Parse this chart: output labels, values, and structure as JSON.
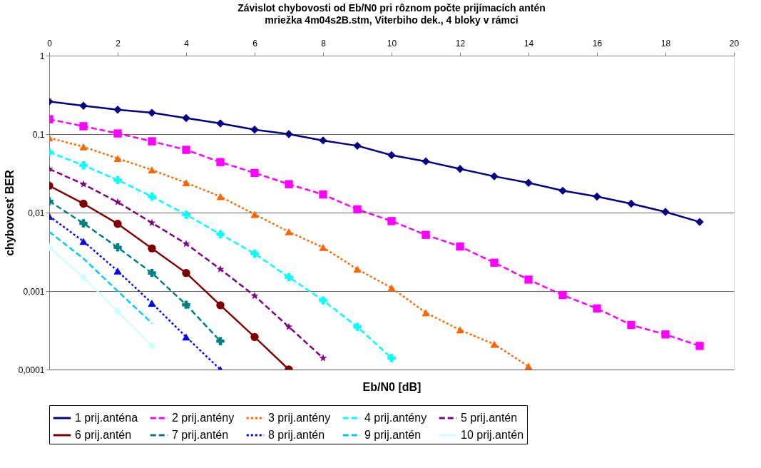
{
  "chart_data": {
    "type": "line",
    "title": "Závislot chybovosti od Eb/N0 pri rôznom počte prijímacích antén",
    "subtitle": "mriežka 4m04s2B.stm, Viterbiho dek., 4 bloky v rámci",
    "xlabel": "Eb/N0 [dB]",
    "ylabel": "chybovosť BER",
    "x": [
      0,
      1,
      2,
      3,
      4,
      5,
      6,
      7,
      8,
      9,
      10,
      11,
      12,
      13,
      14,
      15,
      16,
      17,
      18,
      19
    ],
    "xlim": [
      0,
      20
    ],
    "xticks": [
      0,
      2,
      4,
      6,
      8,
      10,
      12,
      14,
      16,
      18,
      20
    ],
    "ylim": [
      0.0001,
      1
    ],
    "log": "y",
    "yticks": [
      {
        "value": 0.0001,
        "label": "0,0001"
      },
      {
        "value": 0.001,
        "label": "0,001"
      },
      {
        "value": 0.01,
        "label": "0,01"
      },
      {
        "value": 0.1,
        "label": "0,1"
      },
      1
    ],
    "grid": "y",
    "legend": "bottom",
    "series": [
      {
        "name": "1 prij.anténa",
        "color": "#000080",
        "marker": "diamond",
        "line_style": "solid",
        "values": [
          0.26,
          0.23,
          0.205,
          0.187,
          0.16,
          0.137,
          0.114,
          0.1,
          0.083,
          0.071,
          0.054,
          0.045,
          0.036,
          0.029,
          0.024,
          0.019,
          0.016,
          0.013,
          0.0102,
          0.0076
        ]
      },
      {
        "name": "2 prij.antény",
        "color": "#ff00ff",
        "marker": "square",
        "line_style": "dashed",
        "values": [
          0.155,
          0.126,
          0.102,
          0.081,
          0.063,
          0.044,
          0.032,
          0.023,
          0.017,
          0.011,
          0.0078,
          0.0052,
          0.0037,
          0.0023,
          0.0014,
          0.00089,
          0.0006,
          0.00037,
          0.00028,
          0.0002
        ]
      },
      {
        "name": "3 prij.antény",
        "color": "#ff6600",
        "marker": "triangle",
        "line_style": "dotted",
        "values": [
          0.09,
          0.069,
          0.049,
          0.035,
          0.024,
          0.016,
          0.0095,
          0.0057,
          0.0036,
          0.0019,
          0.0011,
          0.00053,
          0.00032,
          0.00021,
          0.00011,
          null,
          null,
          null,
          null,
          null
        ]
      },
      {
        "name": "4 prij.antény",
        "color": "#00ffff",
        "marker": "cross",
        "line_style": "dashed",
        "values": [
          0.059,
          0.04,
          0.026,
          0.016,
          0.0094,
          0.0053,
          0.003,
          0.0015,
          0.00076,
          0.00035,
          0.00014,
          null,
          null,
          null,
          null,
          null,
          null,
          null,
          null,
          null
        ]
      },
      {
        "name": "5 prij.antén",
        "color": "#800080",
        "marker": "star",
        "line_style": "dashed",
        "values": [
          0.036,
          0.023,
          0.0136,
          0.0074,
          0.004,
          0.0019,
          0.00087,
          0.00035,
          0.00014,
          null,
          null,
          null,
          null,
          null,
          null,
          null,
          null,
          null,
          null,
          null
        ]
      },
      {
        "name": "6 prij.antén",
        "color": "#800000",
        "marker": "circle",
        "line_style": "solid",
        "values": [
          0.022,
          0.013,
          0.0072,
          0.0035,
          0.0017,
          0.00066,
          0.00026,
          0.0001,
          null,
          null,
          null,
          null,
          null,
          null,
          null,
          null,
          null,
          null,
          null,
          null
        ]
      },
      {
        "name": "7 prij.antén",
        "color": "#008080",
        "marker": "cross",
        "line_style": "dashed",
        "values": [
          0.014,
          0.0073,
          0.0036,
          0.0017,
          0.00067,
          0.00023,
          null,
          null,
          null,
          null,
          null,
          null,
          null,
          null,
          null,
          null,
          null,
          null,
          null,
          null
        ]
      },
      {
        "name": "8 prij.antén",
        "color": "#0000ff",
        "marker": "triangle",
        "line_style": "dotted",
        "values": [
          0.009,
          0.0043,
          0.0018,
          0.0007,
          0.00026,
          0.0001,
          null,
          null,
          null,
          null,
          null,
          null,
          null,
          null,
          null,
          null,
          null,
          null,
          null,
          null
        ]
      },
      {
        "name": "9 prij.antén",
        "color": "#00ccff",
        "marker": "none",
        "line_style": "dashed",
        "values": [
          0.0057,
          0.0026,
          0.001,
          0.00039,
          null,
          null,
          null,
          null,
          null,
          null,
          null,
          null,
          null,
          null,
          null,
          null,
          null,
          null,
          null,
          null
        ]
      },
      {
        "name": "10 prij.antén",
        "color": "#ccffff",
        "marker": "diamond",
        "line_style": "solid",
        "values": [
          0.0036,
          0.0015,
          0.00055,
          0.0002,
          null,
          null,
          null,
          null,
          null,
          null,
          null,
          null,
          null,
          null,
          null,
          null,
          null,
          null,
          null,
          null
        ]
      }
    ]
  }
}
